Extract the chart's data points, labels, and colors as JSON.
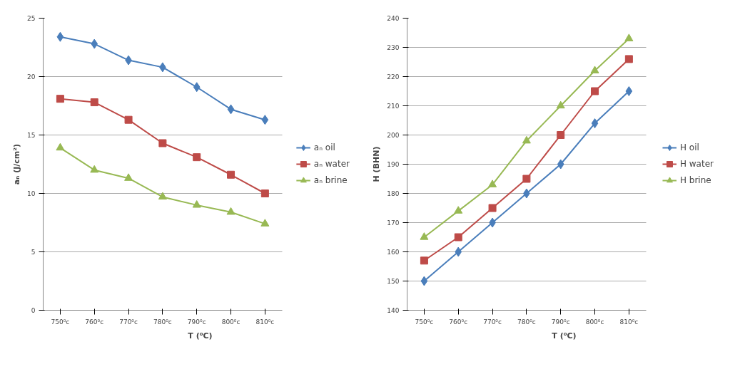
{
  "chart_data": [
    {
      "type": "line",
      "xlabel": "T (⁰C)",
      "ylabel": "aₙ (J/cm²)",
      "categories": [
        "750⁰c",
        "760⁰c",
        "770⁰c",
        "780⁰c",
        "790⁰c",
        "800⁰c",
        "810⁰c"
      ],
      "ylim": [
        0,
        25
      ],
      "yticks": [
        0,
        5,
        10,
        15,
        20,
        25
      ],
      "grid": "y",
      "legend": "right",
      "series": [
        {
          "name": "aₙ oil",
          "color": "#4a7ebb",
          "marker": "diamond",
          "values": [
            23.4,
            22.8,
            21.4,
            20.8,
            19.1,
            17.2,
            16.3
          ]
        },
        {
          "name": "aₙ water",
          "color": "#be4b48",
          "marker": "square",
          "values": [
            18.1,
            17.8,
            16.3,
            14.3,
            13.1,
            11.6,
            10.0
          ]
        },
        {
          "name": "aₙ brine",
          "color": "#98b954",
          "marker": "triangle",
          "values": [
            13.9,
            12.0,
            11.3,
            9.7,
            9.0,
            8.4,
            7.4
          ]
        }
      ]
    },
    {
      "type": "line",
      "xlabel": "T (⁰C)",
      "ylabel": "H (BHN)",
      "categories": [
        "750⁰c",
        "760⁰c",
        "770⁰c",
        "780⁰c",
        "790⁰c",
        "800⁰c",
        "810⁰c"
      ],
      "ylim": [
        140,
        240
      ],
      "yticks": [
        140,
        150,
        160,
        170,
        180,
        190,
        200,
        210,
        220,
        230,
        240
      ],
      "grid": "y",
      "legend": "right",
      "series": [
        {
          "name": "H oil",
          "color": "#4a7ebb",
          "marker": "diamond",
          "values": [
            150,
            160,
            170,
            180,
            190,
            204,
            215
          ]
        },
        {
          "name": "H water",
          "color": "#be4b48",
          "marker": "square",
          "values": [
            157,
            165,
            175,
            185,
            200,
            215,
            226
          ]
        },
        {
          "name": "H brine",
          "color": "#98b954",
          "marker": "triangle",
          "values": [
            165,
            174,
            183,
            198,
            210,
            222,
            233
          ]
        }
      ]
    }
  ]
}
